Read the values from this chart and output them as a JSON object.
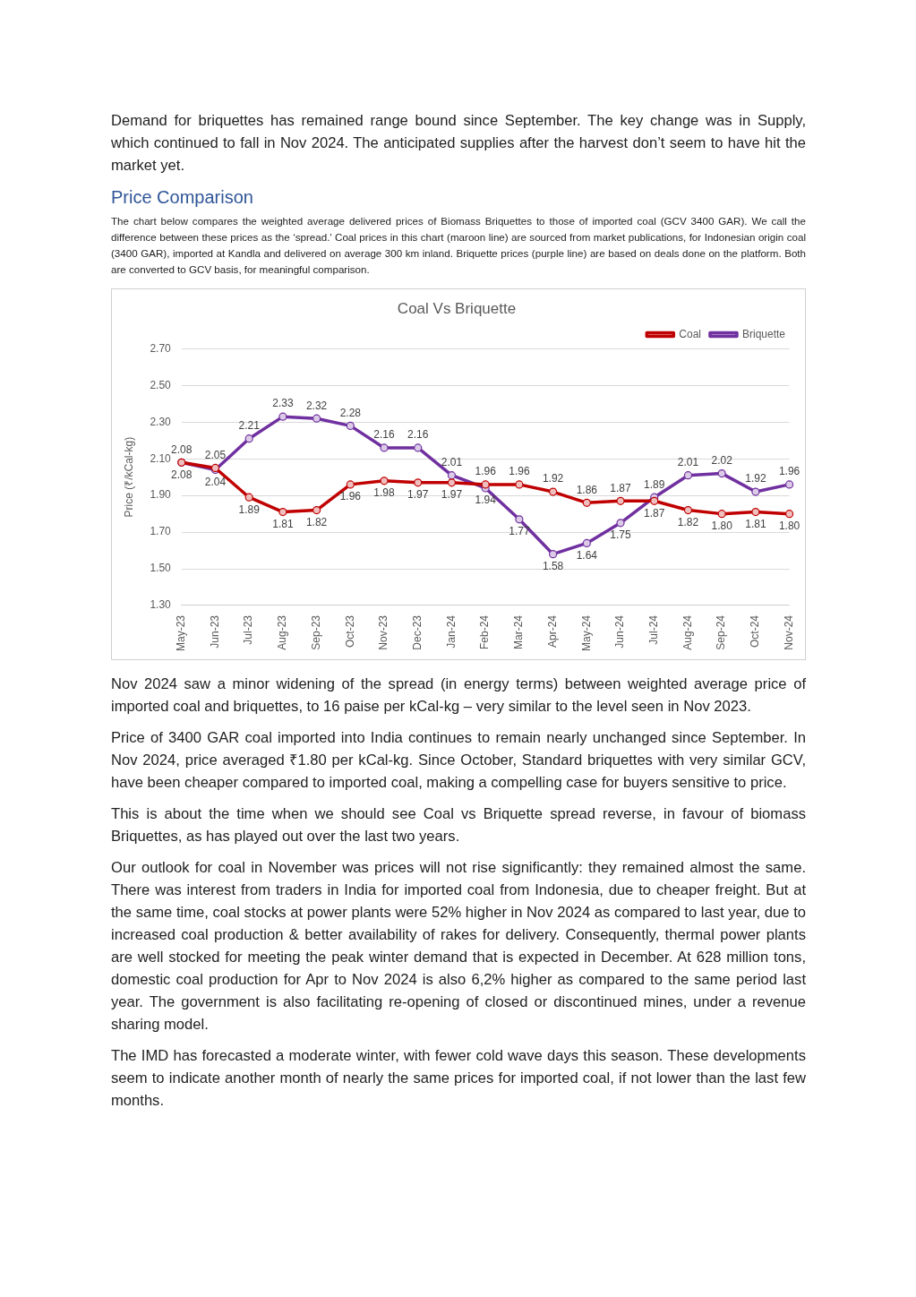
{
  "chart_data": {
    "type": "line",
    "title": "Coal Vs Briquette",
    "ylabel": "Price (₹/kCal-kg)",
    "categories": [
      "May-23",
      "Jun-23",
      "Jul-23",
      "Aug-23",
      "Sep-23",
      "Oct-23",
      "Nov-23",
      "Dec-23",
      "Jan-24",
      "Feb-24",
      "Mar-24",
      "Apr-24",
      "May-24",
      "Jun-24",
      "Jul-24",
      "Aug-24",
      "Sep-24",
      "Oct-24",
      "Nov-24"
    ],
    "series": [
      {
        "name": "Coal",
        "color": "#c00000",
        "values": [
          2.08,
          2.05,
          1.89,
          1.81,
          1.82,
          1.96,
          1.98,
          1.97,
          1.97,
          1.96,
          1.96,
          1.92,
          1.86,
          1.87,
          1.87,
          1.82,
          1.8,
          1.81,
          1.8
        ],
        "value_labels": [
          "2.08",
          "2.05",
          "1.89",
          "1.81",
          "1.82",
          "1.96",
          "1.98",
          "1.97",
          "1.97",
          "1.96",
          "1.96",
          "1.92",
          "1.86",
          "1.87",
          "1.87",
          "1.82",
          "1.80",
          "1.81",
          "1.80"
        ]
      },
      {
        "name": "Briquette",
        "color": "#7030a0",
        "values": [
          2.08,
          2.04,
          2.21,
          2.33,
          2.32,
          2.28,
          2.16,
          2.16,
          2.01,
          1.94,
          1.77,
          1.58,
          1.64,
          1.75,
          1.89,
          2.01,
          2.02,
          1.92,
          1.96
        ],
        "value_labels": [
          "2.08",
          "2.04",
          "2.21",
          "2.33",
          "2.32",
          "2.28",
          "2.16",
          "2.16",
          "2.01",
          "1.94",
          "1.77",
          "1.58",
          "1.64",
          "1.75",
          "1.89",
          "2.01",
          "2.02",
          "1.92",
          "1.96"
        ]
      }
    ],
    "ylim": [
      1.3,
      2.7
    ],
    "yticks": [
      {
        "value": 1.3,
        "label": "1.30"
      },
      {
        "value": 1.5,
        "label": "1.50"
      },
      {
        "value": 1.7,
        "label": "1.70"
      },
      {
        "value": 1.9,
        "label": "1.90"
      },
      {
        "value": 2.1,
        "label": "2.10"
      },
      {
        "value": 2.3,
        "label": "2.30"
      },
      {
        "value": 2.5,
        "label": "2.50"
      },
      {
        "value": 2.7,
        "label": "2.70"
      }
    ],
    "grid": "y",
    "legend": "top right",
    "marker": "circle",
    "line_style": "solid",
    "annotations": [
      "Demand for briquettes has remained range bound since September. The key change was in Supply, which continued to fall in Nov 2024. The anticipated supplies after the harvest don’t seem to have hit the market yet.",
      "Price Comparison",
      "The chart below compares the weighted average delivered prices of Biomass Briquettes to those of imported coal (GCV 3400 GAR). We call the difference between these prices as the ‘spread.’ Coal prices in this chart (maroon line) are sourced from market publications, for Indonesian origin coal (3400 GAR), imported at Kandla and delivered on average 300 km inland. Briquette prices (purple line) are based on deals done on the platform. Both are converted to GCV basis, for meaningful comparison.",
      "Nov 2024 saw a minor widening of the spread (in energy terms) between weighted average price of imported coal and briquettes, to 16 paise per kCal-kg – very similar to the level seen in Nov 2023.",
      "Price of 3400 GAR coal imported into India continues to remain nearly unchanged since September. In Nov 2024, price averaged ₹1.80 per kCal-kg. Since October, Standard briquettes with very similar GCV, have been cheaper compared to imported coal, making a compelling case for buyers sensitive to price.",
      "This is about the time when we should see Coal vs Briquette spread reverse, in favour of biomass Briquettes, as has played out over the last two years.",
      "Our outlook for coal in November was prices will not rise significantly: they remained almost the same. There was interest from traders in India for imported coal from Indonesia, due to cheaper freight. But at the same time, coal stocks at power plants were 52% higher in Nov 2024 as compared to last year, due to increased coal production & better availability of rakes for delivery. Consequently, thermal power plants are well stocked for meeting the peak winter demand that is expected in December.  At 628 million tons, domestic coal production for Apr to Nov 2024 is also 6,2% higher as compared to the same period last year. The government is also facilitating re-opening of closed or discontinued mines, under a revenue sharing model.",
      "The IMD has forecasted a moderate winter, with fewer cold wave days this season. These developments seem to indicate another month of nearly the same prices for imported coal, if not lower than the last few months."
    ]
  }
}
